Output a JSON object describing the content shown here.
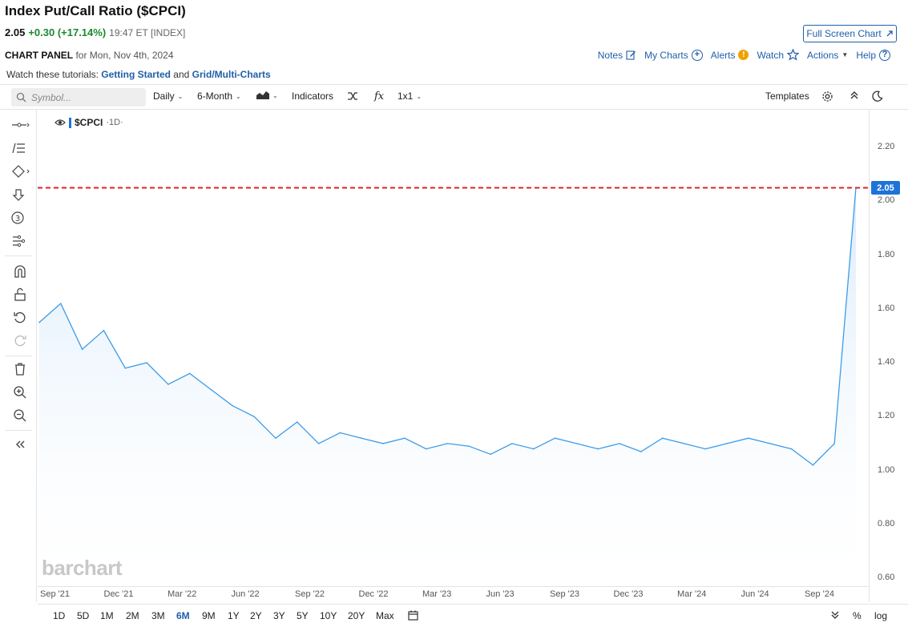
{
  "header": {
    "title": "Index Put/Call Ratio ($CPCI)",
    "price": "2.05",
    "change": "+0.30 (+17.14%)",
    "meta": "19:47 ET [INDEX]",
    "full_screen_label": "Full Screen Chart"
  },
  "panel": {
    "label": "CHART PANEL",
    "date": "for Mon, Nov 4th, 2024"
  },
  "top_links": {
    "notes": "Notes",
    "my_charts": "My Charts",
    "alerts": "Alerts",
    "watch": "Watch",
    "actions": "Actions",
    "help": "Help"
  },
  "tutorials": {
    "prefix": "Watch these tutorials:",
    "link1": "Getting Started",
    "joiner": "and",
    "link2": "Grid/Multi-Charts"
  },
  "toolbar": {
    "search_placeholder": "Symbol...",
    "interval": "Daily",
    "period": "6-Month",
    "indicators": "Indicators",
    "layout": "1x1",
    "templates": "Templates"
  },
  "legend": {
    "symbol": "$CPCI",
    "interval": "·1D·"
  },
  "watermark": "barchart",
  "price_badge": "2.05",
  "colors": {
    "line": "#3d9be9",
    "fill_top": "#d6e9fb",
    "ref_line": "#e0202a",
    "badge": "#1e73d8",
    "link": "#1f5fa8",
    "positive": "#1a8a2e"
  },
  "bottom_ranges": [
    "1D",
    "5D",
    "1M",
    "2M",
    "3M",
    "6M",
    "9M",
    "1Y",
    "2Y",
    "3Y",
    "5Y",
    "10Y",
    "20Y",
    "Max"
  ],
  "active_range": "6M",
  "bottom_right": {
    "percent": "%",
    "log": "log"
  },
  "chart_data": {
    "type": "area",
    "title": "",
    "xlabel": "",
    "ylabel": "",
    "x_tick_labels": [
      "Sep '21",
      "Dec '21",
      "Mar '22",
      "Jun '22",
      "Sep '22",
      "Dec '22",
      "Mar '23",
      "Jun '23",
      "Sep '23",
      "Dec '23",
      "Mar '24",
      "Jun '24",
      "Sep '24"
    ],
    "y_tick_labels": [
      "0.60",
      "0.80",
      "1.00",
      "1.20",
      "1.40",
      "1.60",
      "1.80",
      "2.00",
      "2.20"
    ],
    "ylim": [
      0.6,
      2.2
    ],
    "reference_line": 2.05,
    "last_value": 2.05,
    "series": [
      {
        "name": "$CPCI",
        "x": [
          "Sep '21",
          "Oct '21",
          "Nov '21",
          "Dec '21",
          "Jan '22",
          "Feb '22",
          "Mar '22",
          "Apr '22",
          "May '22",
          "Jun '22",
          "Jul '22",
          "Aug '22",
          "Sep '22",
          "Oct '22",
          "Nov '22",
          "Dec '22",
          "Jan '23",
          "Feb '23",
          "Mar '23",
          "Apr '23",
          "May '23",
          "Jun '23",
          "Jul '23",
          "Aug '23",
          "Sep '23",
          "Oct '23",
          "Nov '23",
          "Dec '23",
          "Jan '24",
          "Feb '24",
          "Mar '24",
          "Apr '24",
          "May '24",
          "Jun '24",
          "Jul '24",
          "Aug '24",
          "Sep '24",
          "Oct '24",
          "Nov '24"
        ],
        "values": [
          1.55,
          1.62,
          1.45,
          1.52,
          1.38,
          1.4,
          1.32,
          1.36,
          1.3,
          1.24,
          1.2,
          1.12,
          1.18,
          1.1,
          1.14,
          1.12,
          1.1,
          1.12,
          1.08,
          1.1,
          1.09,
          1.06,
          1.1,
          1.08,
          1.12,
          1.1,
          1.08,
          1.1,
          1.07,
          1.12,
          1.1,
          1.08,
          1.1,
          1.12,
          1.1,
          1.08,
          1.02,
          1.1,
          2.05
        ]
      }
    ]
  }
}
